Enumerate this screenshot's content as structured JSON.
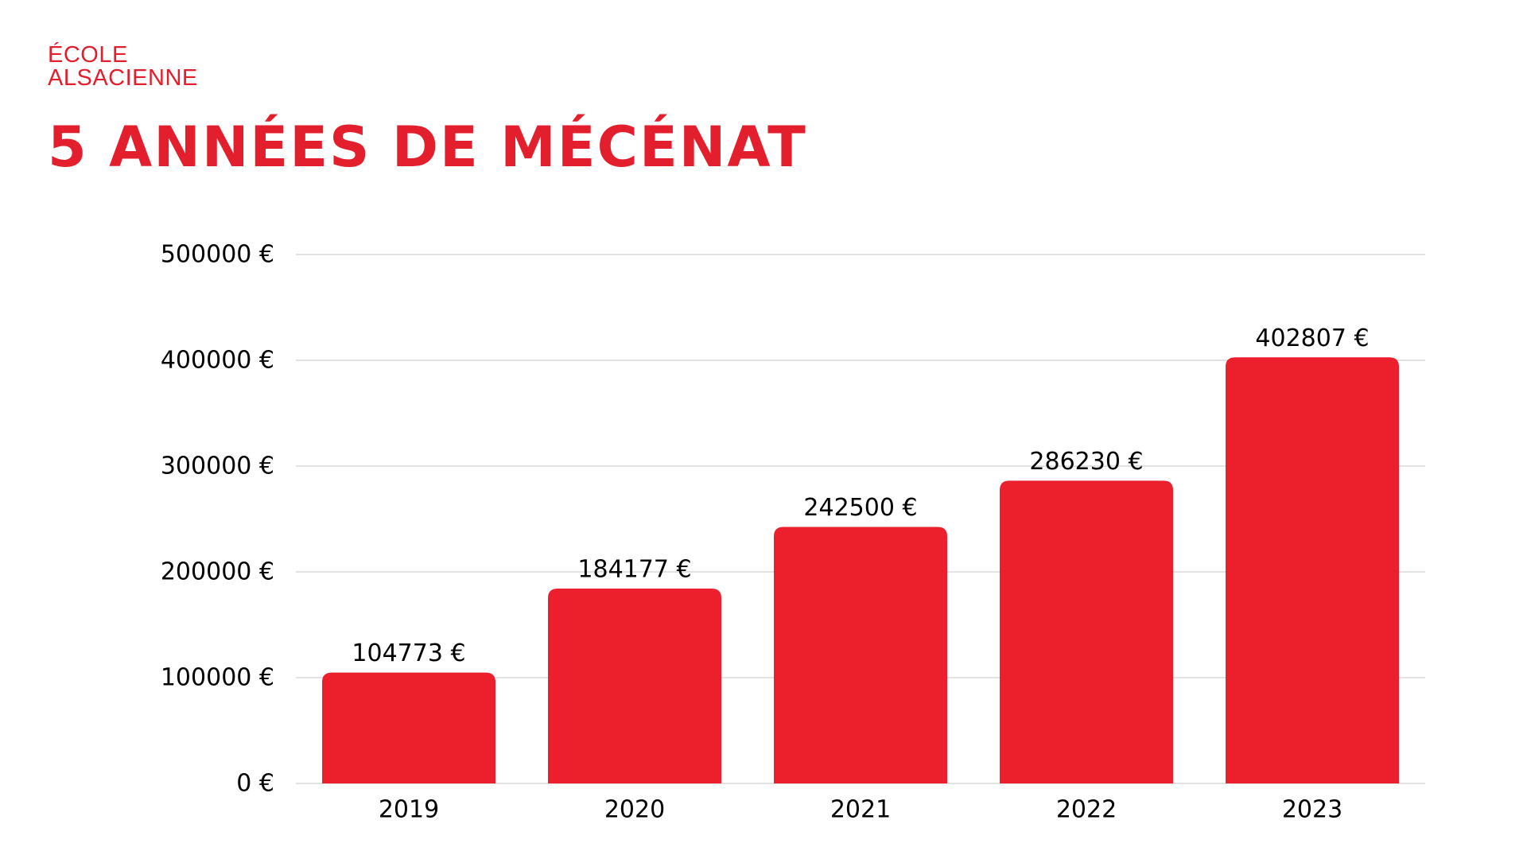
{
  "logo": {
    "line1": "ÉCOLE",
    "line2": "ALSACIENNE"
  },
  "title": "5 ANNÉES DE MÉCÉNAT",
  "colors": {
    "brand": "#e31e2d",
    "bar": "#ec1f2c",
    "grid": "#d9d9d9",
    "text": "#000000"
  },
  "chart_data": {
    "type": "bar",
    "categories": [
      "2019",
      "2020",
      "2021",
      "2022",
      "2023"
    ],
    "values": [
      104773,
      184177,
      242500,
      286230,
      402807
    ],
    "value_labels": [
      "104773 €",
      "184177 €",
      "242500 €",
      "286230 €",
      "402807 €"
    ],
    "title": "5 ANNÉES DE MÉCÉNAT",
    "xlabel": "",
    "ylabel": "",
    "ylim": [
      0,
      500000
    ],
    "yticks": [
      0,
      100000,
      200000,
      300000,
      400000,
      500000
    ],
    "ytick_labels": [
      "0 €",
      "100000 €",
      "200000 €",
      "300000 €",
      "400000 €",
      "500000 €"
    ],
    "grid": true,
    "legend": "none"
  }
}
